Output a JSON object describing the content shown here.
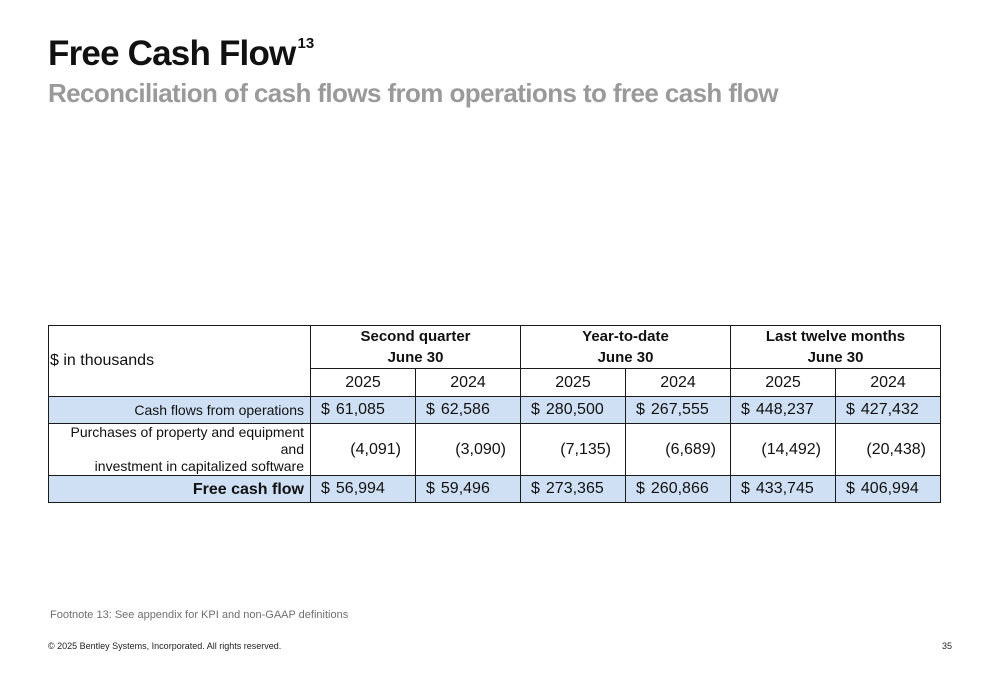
{
  "header": {
    "title": "Free Cash Flow",
    "title_footnote_ref": "13",
    "subtitle": "Reconciliation of cash flows from operations to free cash flow"
  },
  "table": {
    "units_label": "$ in thousands",
    "groups": [
      {
        "line1": "Second quarter",
        "line2": "June 30"
      },
      {
        "line1": "Year-to-date",
        "line2": "June 30"
      },
      {
        "line1": "Last twelve months",
        "line2": "June 30"
      }
    ],
    "years": [
      "2025",
      "2024",
      "2025",
      "2024",
      "2025",
      "2024"
    ],
    "rows": [
      {
        "label": "Cash flows from operations",
        "values": [
          {
            "cur": "$",
            "amt": "61,085"
          },
          {
            "cur": "$",
            "amt": "62,586"
          },
          {
            "cur": "$",
            "amt": "280,500"
          },
          {
            "cur": "$",
            "amt": "267,555"
          },
          {
            "cur": "$",
            "amt": "448,237"
          },
          {
            "cur": "$",
            "amt": "427,432"
          }
        ]
      },
      {
        "label_line1": "Purchases of property and equipment and",
        "label_line2": "investment in capitalized software",
        "values": [
          "(4,091)",
          "(3,090)",
          "(7,135)",
          "(6,689)",
          "(14,492)",
          "(20,438)"
        ]
      },
      {
        "label": "Free cash flow",
        "values": [
          {
            "cur": "$",
            "amt": "56,994"
          },
          {
            "cur": "$",
            "amt": "59,496"
          },
          {
            "cur": "$",
            "amt": "273,365"
          },
          {
            "cur": "$",
            "amt": "260,866"
          },
          {
            "cur": "$",
            "amt": "433,745"
          },
          {
            "cur": "$",
            "amt": "406,994"
          }
        ]
      }
    ],
    "highlight_color": "#cfe0f5"
  },
  "footer": {
    "footnote": "Footnote 13: See appendix for KPI and non-GAAP definitions",
    "copyright": "© 2025 Bentley Systems, Incorporated. All rights reserved.",
    "page_number": "35"
  }
}
